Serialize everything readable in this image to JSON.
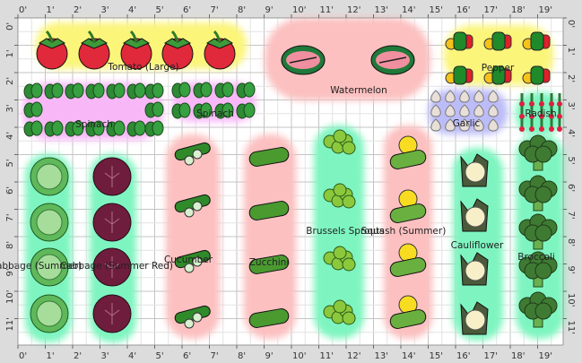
{
  "rulers": {
    "x_labels": [
      "0'",
      "1'",
      "2'",
      "3'",
      "4'",
      "5'",
      "6'",
      "7'",
      "8'",
      "9'",
      "10'",
      "11'",
      "12'",
      "13'",
      "14'",
      "15'",
      "16'",
      "17'",
      "18'",
      "19'"
    ],
    "y_labels": [
      "0'",
      "1'",
      "2'",
      "3'",
      "4'",
      "5'",
      "6'",
      "7'",
      "8'",
      "9'",
      "10'",
      "11'"
    ]
  },
  "colors": {
    "ruler_bg": "#dcdcdc",
    "grid_bg": "#ffffff",
    "grid_minor": "#e4e4e4",
    "grid_major": "#c4c4c4",
    "bed_yellow": "#fbf57a",
    "bed_pink": "#fcc0c0",
    "bed_magenta": "#f8b8f8",
    "bed_green": "#7ef5c0",
    "bed_blue": "#bcbcf8"
  },
  "beds": [
    {
      "label": "Tomato (Large)",
      "color": "bed_yellow",
      "icon": "tomato-icon"
    },
    {
      "label": "Spinach",
      "color": "bed_magenta",
      "icon": "spinach-icon"
    },
    {
      "label": "Spinach",
      "color": "bed_magenta",
      "icon": "spinach-icon"
    },
    {
      "label": "Watermelon",
      "color": "bed_pink",
      "icon": "watermelon-icon"
    },
    {
      "label": "Pepper",
      "color": "bed_yellow",
      "icon": "pepper-icon"
    },
    {
      "label": "Garlic",
      "color": "bed_blue",
      "icon": "garlic-icon"
    },
    {
      "label": "Radish",
      "color": "bed_green",
      "icon": "radish-icon"
    },
    {
      "label": "Cabbage (Summer)",
      "color": "bed_green",
      "icon": "cabbage-icon"
    },
    {
      "label": "Cabbage (Summer Red)",
      "color": "bed_green",
      "icon": "red-cabbage-icon"
    },
    {
      "label": "Cucumber",
      "color": "bed_pink",
      "icon": "cucumber-icon"
    },
    {
      "label": "Zucchini",
      "color": "bed_pink",
      "icon": "zucchini-icon"
    },
    {
      "label": "Brussels Sprouts",
      "color": "bed_green",
      "icon": "brussels-sprouts-icon"
    },
    {
      "label": "Squash (Summer)",
      "color": "bed_pink",
      "icon": "squash-icon"
    },
    {
      "label": "Cauliflower",
      "color": "bed_green",
      "icon": "cauliflower-icon"
    },
    {
      "label": "Broccoli",
      "color": "bed_green",
      "icon": "broccoli-icon"
    }
  ]
}
